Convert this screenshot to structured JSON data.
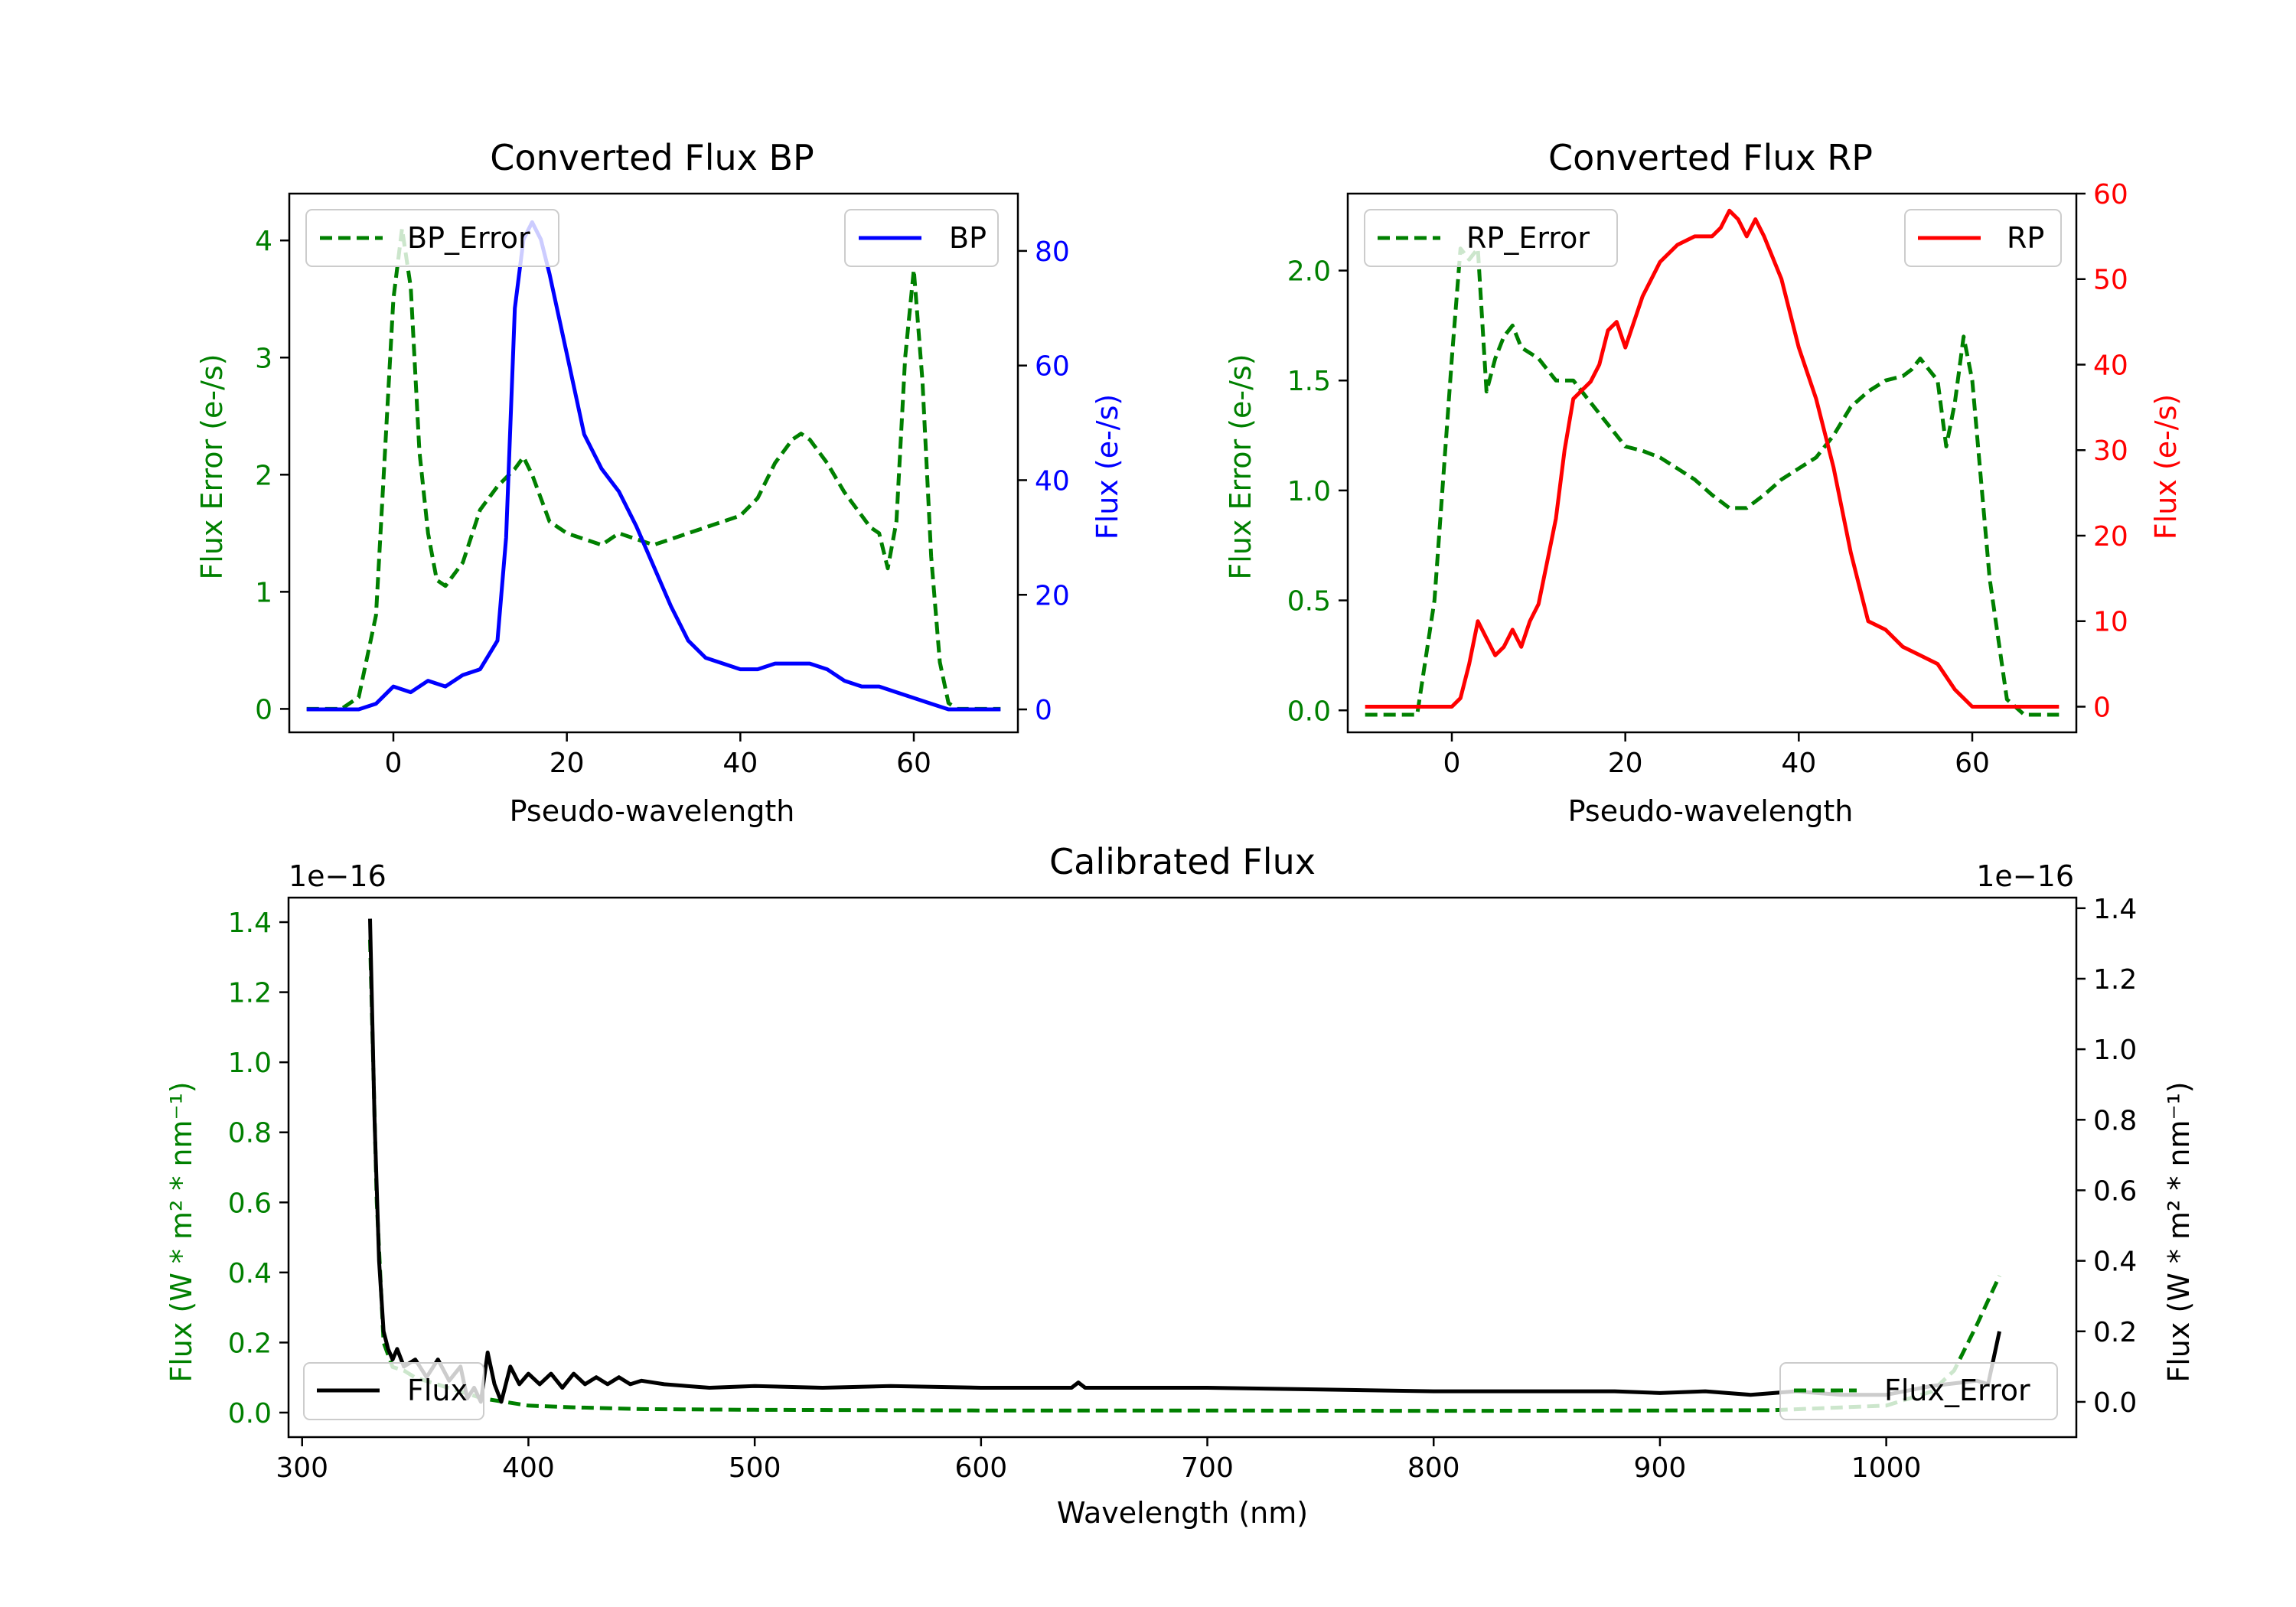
{
  "colors": {
    "green": "#008000",
    "blue": "#0000ff",
    "red": "#ff0000",
    "black": "#000000"
  },
  "chart_data": [
    {
      "id": "bp",
      "type": "line",
      "title": "Converted Flux BP",
      "xlabel": "Pseudo-wavelength",
      "ylabel_left": "Flux Error (e-/s)",
      "ylabel_right": "Flux (e-/s)",
      "xlim": [
        -12,
        72
      ],
      "ylim_left": [
        -0.2,
        4.4
      ],
      "ylim_right": [
        -4,
        90
      ],
      "xticks": [
        0,
        20,
        40,
        60
      ],
      "yticks_left": [
        0,
        1,
        2,
        3,
        4
      ],
      "yticks_right": [
        0,
        20,
        40,
        60,
        80
      ],
      "legend_left": {
        "label": "BP_Error",
        "position": "upper left"
      },
      "legend_right": {
        "label": "BP",
        "position": "upper right"
      },
      "series": [
        {
          "name": "BP_Error",
          "axis": "left",
          "color": "#008000",
          "dash": true,
          "x": [
            -10,
            -6,
            -4,
            -2,
            0,
            1,
            2,
            3,
            4,
            5,
            6,
            8,
            10,
            12,
            14,
            15,
            16,
            18,
            20,
            22,
            24,
            26,
            28,
            30,
            32,
            34,
            36,
            38,
            40,
            42,
            44,
            46,
            47,
            48,
            50,
            52,
            54,
            55,
            56,
            57,
            58,
            59,
            60,
            61,
            62,
            63,
            64,
            65,
            70
          ],
          "y": [
            0,
            0,
            0.1,
            0.8,
            3.5,
            4.1,
            3.6,
            2.2,
            1.5,
            1.1,
            1.05,
            1.25,
            1.7,
            1.9,
            2.05,
            2.15,
            2.0,
            1.6,
            1.5,
            1.45,
            1.4,
            1.5,
            1.45,
            1.4,
            1.45,
            1.5,
            1.55,
            1.6,
            1.65,
            1.8,
            2.1,
            2.3,
            2.35,
            2.3,
            2.1,
            1.85,
            1.65,
            1.55,
            1.5,
            1.2,
            1.6,
            3.0,
            3.75,
            2.8,
            1.3,
            0.4,
            0.05,
            0,
            0
          ]
        },
        {
          "name": "BP",
          "axis": "right",
          "color": "#0000ff",
          "dash": false,
          "x": [
            -10,
            -4,
            -2,
            0,
            2,
            4,
            6,
            8,
            10,
            12,
            13,
            14,
            15,
            16,
            17,
            18,
            20,
            22,
            24,
            26,
            28,
            30,
            32,
            34,
            36,
            38,
            40,
            42,
            44,
            46,
            48,
            50,
            52,
            54,
            56,
            58,
            60,
            62,
            64,
            66,
            70
          ],
          "y": [
            0,
            0,
            1,
            4,
            3,
            5,
            4,
            6,
            7,
            12,
            30,
            70,
            82,
            85,
            82,
            76,
            62,
            48,
            42,
            38,
            32,
            25,
            18,
            12,
            9,
            8,
            7,
            7,
            8,
            8,
            8,
            7,
            5,
            4,
            4,
            3,
            2,
            1,
            0,
            0,
            0
          ]
        }
      ]
    },
    {
      "id": "rp",
      "type": "line",
      "title": "Converted Flux RP",
      "xlabel": "Pseudo-wavelength",
      "ylabel_left": "Flux Error (e-/s)",
      "ylabel_right": "Flux (e-/s)",
      "xlim": [
        -12,
        72
      ],
      "ylim_left": [
        -0.1,
        2.35
      ],
      "ylim_right": [
        -3,
        60
      ],
      "xticks": [
        0,
        20,
        40,
        60
      ],
      "yticks_left": [
        0.0,
        0.5,
        1.0,
        1.5,
        2.0
      ],
      "yticks_right": [
        0,
        10,
        20,
        30,
        40,
        50,
        60
      ],
      "legend_left": {
        "label": "RP_Error",
        "position": "upper left"
      },
      "legend_right": {
        "label": "RP",
        "position": "upper right"
      },
      "series": [
        {
          "name": "RP_Error",
          "axis": "left",
          "color": "#008000",
          "dash": true,
          "x": [
            -10,
            -4,
            -2,
            0,
            1,
            2,
            3,
            4,
            5,
            6,
            7,
            8,
            10,
            12,
            14,
            16,
            18,
            20,
            22,
            24,
            26,
            28,
            30,
            32,
            34,
            36,
            38,
            40,
            42,
            44,
            46,
            48,
            50,
            52,
            53,
            54,
            55,
            56,
            57,
            58,
            59,
            60,
            62,
            64,
            66,
            70
          ],
          "y": [
            -0.02,
            -0.02,
            0.5,
            1.6,
            2.1,
            2.05,
            2.1,
            1.45,
            1.6,
            1.7,
            1.75,
            1.65,
            1.6,
            1.5,
            1.5,
            1.4,
            1.3,
            1.2,
            1.18,
            1.15,
            1.1,
            1.05,
            0.98,
            0.92,
            0.92,
            0.98,
            1.05,
            1.1,
            1.15,
            1.25,
            1.38,
            1.45,
            1.5,
            1.52,
            1.55,
            1.6,
            1.55,
            1.5,
            1.2,
            1.4,
            1.7,
            1.5,
            0.6,
            0.05,
            -0.02,
            -0.02
          ]
        },
        {
          "name": "RP",
          "axis": "right",
          "color": "#ff0000",
          "dash": false,
          "x": [
            -10,
            -4,
            -2,
            0,
            1,
            2,
            3,
            4,
            5,
            6,
            7,
            8,
            9,
            10,
            11,
            12,
            13,
            14,
            15,
            16,
            17,
            18,
            19,
            20,
            22,
            24,
            26,
            28,
            30,
            31,
            32,
            33,
            34,
            35,
            36,
            38,
            40,
            42,
            44,
            46,
            48,
            50,
            52,
            54,
            56,
            58,
            60,
            62,
            64,
            66,
            70
          ],
          "y": [
            0,
            0,
            0,
            0,
            1,
            5,
            10,
            8,
            6,
            7,
            9,
            7,
            10,
            12,
            17,
            22,
            30,
            36,
            37,
            38,
            40,
            44,
            45,
            42,
            48,
            52,
            54,
            55,
            55,
            56,
            58,
            57,
            55,
            57,
            55,
            50,
            42,
            36,
            28,
            18,
            10,
            9,
            7,
            6,
            5,
            2,
            0,
            0,
            0,
            0,
            0
          ]
        }
      ]
    },
    {
      "id": "calibrated",
      "type": "line",
      "title": "Calibrated Flux",
      "xlabel": "Wavelength (nm)",
      "ylabel_left": "Flux (W * m² * nm⁻¹)",
      "ylabel_right": "Flux (W * m² * nm⁻¹)",
      "offset_text_left": "1e−16",
      "offset_text_right": "1e−16",
      "xlim": [
        294,
        1084
      ],
      "ylim_left": [
        -0.07,
        1.47
      ],
      "ylim_right": [
        -0.1,
        1.43
      ],
      "xticks": [
        300,
        400,
        500,
        600,
        700,
        800,
        900,
        1000
      ],
      "yticks_left": [
        0.0,
        0.2,
        0.4,
        0.6,
        0.8,
        1.0,
        1.2,
        1.4
      ],
      "yticks_right": [
        0.0,
        0.2,
        0.4,
        0.6,
        0.8,
        1.0,
        1.2,
        1.4
      ],
      "legend_left": {
        "label": "Flux",
        "position": "lower left"
      },
      "legend_right": {
        "label": "Flux_Error",
        "position": "lower right"
      },
      "series": [
        {
          "name": "Flux_Error",
          "axis": "left",
          "color": "#008000",
          "dash": true,
          "x": [
            330,
            333,
            336,
            340,
            345,
            350,
            355,
            360,
            365,
            370,
            380,
            390,
            400,
            420,
            450,
            500,
            600,
            700,
            800,
            900,
            950,
            1000,
            1020,
            1030,
            1040,
            1050
          ],
          "y": [
            1.35,
            0.6,
            0.2,
            0.13,
            0.12,
            0.1,
            0.09,
            0.08,
            0.07,
            0.06,
            0.04,
            0.03,
            0.02,
            0.015,
            0.01,
            0.008,
            0.006,
            0.006,
            0.005,
            0.006,
            0.007,
            0.02,
            0.06,
            0.12,
            0.25,
            0.39
          ]
        },
        {
          "name": "Flux",
          "axis": "right",
          "color": "#000000",
          "dash": false,
          "x": [
            330,
            332,
            334,
            336,
            338,
            340,
            342,
            345,
            350,
            355,
            360,
            365,
            370,
            373,
            376,
            379,
            382,
            385,
            388,
            392,
            396,
            400,
            405,
            410,
            415,
            420,
            425,
            430,
            435,
            440,
            445,
            450,
            460,
            470,
            480,
            500,
            530,
            560,
            600,
            640,
            643,
            646,
            660,
            700,
            750,
            800,
            850,
            880,
            900,
            920,
            940,
            960,
            980,
            1000,
            1020,
            1040,
            1045,
            1050
          ],
          "y": [
            1.37,
            0.8,
            0.4,
            0.2,
            0.15,
            0.12,
            0.15,
            0.1,
            0.12,
            0.07,
            0.12,
            0.06,
            0.1,
            0.01,
            0.04,
            0.0,
            0.14,
            0.05,
            0.0,
            0.1,
            0.05,
            0.08,
            0.05,
            0.08,
            0.04,
            0.08,
            0.05,
            0.07,
            0.05,
            0.07,
            0.05,
            0.06,
            0.05,
            0.045,
            0.04,
            0.045,
            0.04,
            0.045,
            0.04,
            0.04,
            0.055,
            0.04,
            0.04,
            0.04,
            0.035,
            0.03,
            0.03,
            0.03,
            0.025,
            0.03,
            0.02,
            0.03,
            0.02,
            0.02,
            0.045,
            0.06,
            0.05,
            0.2
          ]
        }
      ]
    }
  ]
}
